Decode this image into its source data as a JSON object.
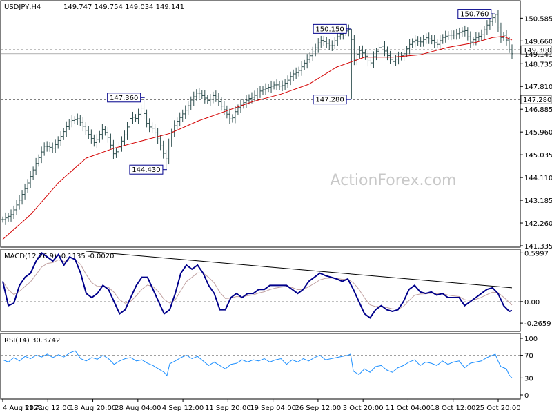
{
  "header": {
    "symbol": "USDJPY,H4",
    "ohlc": "149.747 149.754 149.034 149.141"
  },
  "watermark": "ActionForex.com",
  "colors": {
    "bar": "#2f4f4f",
    "ema": "#d40000",
    "macd": "#00008b",
    "signal": "#c0a0a0",
    "rsi": "#1e90ff",
    "level": "#000000",
    "callout_border": "#00008b"
  },
  "chart_data": [
    {
      "type": "ohlc",
      "title": "USDJPY,H4",
      "ylim": [
        141.335,
        151.1
      ],
      "y_ticks": [
        "150.585",
        "149.660",
        "148.735",
        "147.810",
        "146.885",
        "145.960",
        "145.035",
        "144.110",
        "143.185",
        "142.260",
        "141.335"
      ],
      "x_ticks": [
        "4 Aug 2023",
        "11 Aug 12:00",
        "18 Aug 20:00",
        "28 Aug 04:00",
        "4 Sep 12:00",
        "11 Sep 20:00",
        "19 Sep 04:00",
        "26 Sep 12:00",
        "3 Oct 20:00",
        "11 Oct 04:00",
        "18 Oct 12:00",
        "25 Oct 20:00"
      ],
      "x_range": [
        0,
        183
      ],
      "close_path": [
        [
          0,
          142.4
        ],
        [
          3,
          142.6
        ],
        [
          6,
          143.2
        ],
        [
          9,
          143.9
        ],
        [
          12,
          144.7
        ],
        [
          15,
          145.4
        ],
        [
          18,
          145.3
        ],
        [
          21,
          145.8
        ],
        [
          24,
          146.4
        ],
        [
          27,
          146.5
        ],
        [
          30,
          146.0
        ],
        [
          33,
          145.5
        ],
        [
          36,
          146.1
        ],
        [
          38,
          145.7
        ],
        [
          40,
          145.0
        ],
        [
          42,
          145.4
        ],
        [
          44,
          145.9
        ],
        [
          46,
          146.6
        ],
        [
          48,
          146.5
        ],
        [
          50,
          147.0
        ],
        [
          52,
          146.2
        ],
        [
          54,
          146.1
        ],
        [
          56,
          145.6
        ],
        [
          58,
          145.0
        ],
        [
          59,
          144.8
        ],
        [
          60,
          145.8
        ],
        [
          62,
          146.3
        ],
        [
          64,
          146.6
        ],
        [
          66,
          146.9
        ],
        [
          68,
          147.3
        ],
        [
          70,
          147.6
        ],
        [
          72,
          147.4
        ],
        [
          74,
          147.2
        ],
        [
          76,
          147.5
        ],
        [
          78,
          147.1
        ],
        [
          80,
          146.8
        ],
        [
          82,
          146.4
        ],
        [
          84,
          146.9
        ],
        [
          86,
          147.1
        ],
        [
          88,
          147.3
        ],
        [
          90,
          147.4
        ],
        [
          92,
          147.6
        ],
        [
          94,
          147.7
        ],
        [
          96,
          147.8
        ],
        [
          98,
          147.9
        ],
        [
          100,
          147.8
        ],
        [
          102,
          148.0
        ],
        [
          104,
          148.3
        ],
        [
          106,
          148.4
        ],
        [
          108,
          148.7
        ],
        [
          110,
          149.0
        ],
        [
          112,
          149.3
        ],
        [
          114,
          149.7
        ],
        [
          116,
          149.6
        ],
        [
          118,
          149.4
        ],
        [
          120,
          149.8
        ],
        [
          122,
          150.0
        ],
        [
          124,
          150.1
        ],
        [
          125,
          150.15
        ],
        [
          126,
          148.8
        ],
        [
          128,
          149.3
        ],
        [
          130,
          149.1
        ],
        [
          132,
          148.7
        ],
        [
          134,
          149.2
        ],
        [
          136,
          149.5
        ],
        [
          138,
          149.1
        ],
        [
          140,
          148.8
        ],
        [
          142,
          149.0
        ],
        [
          144,
          149.1
        ],
        [
          146,
          149.5
        ],
        [
          148,
          149.7
        ],
        [
          150,
          149.6
        ],
        [
          152,
          149.8
        ],
        [
          154,
          149.7
        ],
        [
          156,
          149.5
        ],
        [
          158,
          149.8
        ],
        [
          160,
          149.9
        ],
        [
          162,
          149.9
        ],
        [
          164,
          150.0
        ],
        [
          166,
          150.1
        ],
        [
          168,
          149.6
        ],
        [
          170,
          149.8
        ],
        [
          172,
          149.9
        ],
        [
          174,
          150.3
        ],
        [
          176,
          150.6
        ],
        [
          177,
          150.76
        ],
        [
          178,
          150.2
        ],
        [
          179,
          149.8
        ],
        [
          180,
          149.9
        ],
        [
          181,
          149.7
        ],
        [
          182,
          149.3
        ],
        [
          183,
          149.141
        ]
      ],
      "ema_path": [
        [
          0,
          141.6
        ],
        [
          10,
          142.6
        ],
        [
          20,
          143.9
        ],
        [
          30,
          144.9
        ],
        [
          40,
          145.3
        ],
        [
          50,
          145.6
        ],
        [
          60,
          145.9
        ],
        [
          70,
          146.4
        ],
        [
          80,
          146.8
        ],
        [
          90,
          147.2
        ],
        [
          100,
          147.5
        ],
        [
          110,
          147.9
        ],
        [
          120,
          148.6
        ],
        [
          130,
          149.0
        ],
        [
          140,
          149.0
        ],
        [
          150,
          149.1
        ],
        [
          160,
          149.4
        ],
        [
          170,
          149.6
        ],
        [
          176,
          149.8
        ],
        [
          180,
          149.85
        ],
        [
          183,
          149.7
        ]
      ],
      "callouts": [
        {
          "text": "147.360",
          "x": 51,
          "y": 147.36,
          "side": "left"
        },
        {
          "text": "144.430",
          "x": 59,
          "y": 144.43,
          "side": "left"
        },
        {
          "text": "150.150",
          "x": 125,
          "y": 150.15,
          "side": "left"
        },
        {
          "text": "147.280",
          "x": 125,
          "y": 147.28,
          "side": "left"
        },
        {
          "text": "150.760",
          "x": 177,
          "y": 150.76,
          "side": "left"
        }
      ],
      "levels": [
        {
          "value": 149.3,
          "label": "149.300"
        },
        {
          "value": 147.28,
          "label": "147.280"
        }
      ],
      "last_price": {
        "value": 149.141,
        "label": "149.141"
      }
    },
    {
      "type": "line",
      "title": "MACD(12,26,9) -0.1135 -0.0020",
      "ylim": [
        -0.35,
        0.62
      ],
      "y_ticks": [
        "0.5997",
        "0.00",
        "-0.2659"
      ],
      "zero_level": 0,
      "macd_path": [
        [
          0,
          0.25
        ],
        [
          2,
          -0.05
        ],
        [
          4,
          -0.02
        ],
        [
          6,
          0.2
        ],
        [
          8,
          0.3
        ],
        [
          10,
          0.35
        ],
        [
          12,
          0.5
        ],
        [
          14,
          0.6
        ],
        [
          16,
          0.55
        ],
        [
          18,
          0.5
        ],
        [
          20,
          0.58
        ],
        [
          22,
          0.45
        ],
        [
          24,
          0.55
        ],
        [
          26,
          0.52
        ],
        [
          28,
          0.35
        ],
        [
          30,
          0.1
        ],
        [
          32,
          0.05
        ],
        [
          34,
          0.1
        ],
        [
          36,
          0.2
        ],
        [
          38,
          0.15
        ],
        [
          40,
          0.0
        ],
        [
          42,
          -0.15
        ],
        [
          44,
          -0.1
        ],
        [
          46,
          0.05
        ],
        [
          48,
          0.2
        ],
        [
          50,
          0.3
        ],
        [
          52,
          0.3
        ],
        [
          54,
          0.15
        ],
        [
          56,
          0.0
        ],
        [
          58,
          -0.15
        ],
        [
          60,
          -0.1
        ],
        [
          62,
          0.1
        ],
        [
          64,
          0.35
        ],
        [
          66,
          0.45
        ],
        [
          68,
          0.4
        ],
        [
          70,
          0.45
        ],
        [
          72,
          0.35
        ],
        [
          74,
          0.2
        ],
        [
          76,
          0.1
        ],
        [
          78,
          -0.1
        ],
        [
          80,
          -0.1
        ],
        [
          82,
          0.05
        ],
        [
          84,
          0.1
        ],
        [
          86,
          0.05
        ],
        [
          88,
          0.1
        ],
        [
          90,
          0.1
        ],
        [
          92,
          0.15
        ],
        [
          94,
          0.15
        ],
        [
          96,
          0.2
        ],
        [
          98,
          0.2
        ],
        [
          100,
          0.2
        ],
        [
          102,
          0.2
        ],
        [
          104,
          0.15
        ],
        [
          106,
          0.1
        ],
        [
          108,
          0.15
        ],
        [
          110,
          0.25
        ],
        [
          112,
          0.3
        ],
        [
          114,
          0.35
        ],
        [
          116,
          0.32
        ],
        [
          118,
          0.3
        ],
        [
          120,
          0.28
        ],
        [
          122,
          0.25
        ],
        [
          124,
          0.28
        ],
        [
          126,
          0.15
        ],
        [
          128,
          0.0
        ],
        [
          130,
          -0.15
        ],
        [
          132,
          -0.2
        ],
        [
          134,
          -0.1
        ],
        [
          136,
          -0.05
        ],
        [
          138,
          -0.1
        ],
        [
          140,
          -0.12
        ],
        [
          142,
          -0.1
        ],
        [
          144,
          0.0
        ],
        [
          146,
          0.15
        ],
        [
          148,
          0.2
        ],
        [
          150,
          0.12
        ],
        [
          152,
          0.1
        ],
        [
          154,
          0.12
        ],
        [
          156,
          0.08
        ],
        [
          158,
          0.1
        ],
        [
          160,
          0.05
        ],
        [
          162,
          0.05
        ],
        [
          164,
          0.05
        ],
        [
          166,
          -0.05
        ],
        [
          168,
          0.0
        ],
        [
          170,
          0.05
        ],
        [
          172,
          0.1
        ],
        [
          174,
          0.15
        ],
        [
          176,
          0.17
        ],
        [
          178,
          0.1
        ],
        [
          180,
          -0.05
        ],
        [
          182,
          -0.12
        ],
        [
          183,
          -0.11
        ]
      ],
      "trendline": [
        [
          30,
          0.62
        ],
        [
          183,
          0.17
        ]
      ]
    },
    {
      "type": "line",
      "title": "RSI(14) 30.3742",
      "ylim": [
        0,
        100
      ],
      "y_ticks": [
        "100",
        "70",
        "30",
        "0"
      ],
      "levels": [
        70,
        30
      ],
      "rsi_path": [
        [
          0,
          62
        ],
        [
          2,
          58
        ],
        [
          4,
          66
        ],
        [
          6,
          60
        ],
        [
          8,
          68
        ],
        [
          10,
          64
        ],
        [
          12,
          70
        ],
        [
          14,
          67
        ],
        [
          16,
          72
        ],
        [
          18,
          66
        ],
        [
          20,
          71
        ],
        [
          22,
          67
        ],
        [
          24,
          74
        ],
        [
          26,
          78
        ],
        [
          28,
          64
        ],
        [
          30,
          60
        ],
        [
          32,
          66
        ],
        [
          34,
          63
        ],
        [
          36,
          70
        ],
        [
          38,
          64
        ],
        [
          40,
          54
        ],
        [
          42,
          60
        ],
        [
          44,
          64
        ],
        [
          46,
          66
        ],
        [
          48,
          60
        ],
        [
          50,
          62
        ],
        [
          52,
          56
        ],
        [
          54,
          52
        ],
        [
          56,
          46
        ],
        [
          58,
          40
        ],
        [
          59,
          34
        ],
        [
          60,
          55
        ],
        [
          62,
          60
        ],
        [
          64,
          66
        ],
        [
          66,
          70
        ],
        [
          68,
          64
        ],
        [
          70,
          68
        ],
        [
          72,
          60
        ],
        [
          74,
          52
        ],
        [
          76,
          58
        ],
        [
          78,
          52
        ],
        [
          80,
          46
        ],
        [
          82,
          54
        ],
        [
          84,
          56
        ],
        [
          86,
          62
        ],
        [
          88,
          58
        ],
        [
          90,
          62
        ],
        [
          92,
          60
        ],
        [
          94,
          64
        ],
        [
          96,
          58
        ],
        [
          98,
          62
        ],
        [
          100,
          64
        ],
        [
          102,
          54
        ],
        [
          104,
          62
        ],
        [
          106,
          58
        ],
        [
          108,
          64
        ],
        [
          110,
          60
        ],
        [
          112,
          66
        ],
        [
          114,
          70
        ],
        [
          116,
          62
        ],
        [
          118,
          64
        ],
        [
          120,
          66
        ],
        [
          122,
          68
        ],
        [
          124,
          70
        ],
        [
          125,
          72
        ],
        [
          126,
          42
        ],
        [
          128,
          36
        ],
        [
          130,
          46
        ],
        [
          132,
          40
        ],
        [
          134,
          50
        ],
        [
          136,
          52
        ],
        [
          138,
          44
        ],
        [
          140,
          40
        ],
        [
          142,
          48
        ],
        [
          144,
          52
        ],
        [
          146,
          58
        ],
        [
          148,
          62
        ],
        [
          150,
          52
        ],
        [
          152,
          58
        ],
        [
          154,
          56
        ],
        [
          156,
          52
        ],
        [
          158,
          60
        ],
        [
          160,
          54
        ],
        [
          162,
          58
        ],
        [
          164,
          60
        ],
        [
          166,
          48
        ],
        [
          168,
          56
        ],
        [
          170,
          58
        ],
        [
          172,
          60
        ],
        [
          174,
          66
        ],
        [
          176,
          70
        ],
        [
          177,
          72
        ],
        [
          178,
          60
        ],
        [
          179,
          50
        ],
        [
          180,
          48
        ],
        [
          181,
          46
        ],
        [
          182,
          35
        ],
        [
          183,
          30
        ]
      ]
    }
  ]
}
